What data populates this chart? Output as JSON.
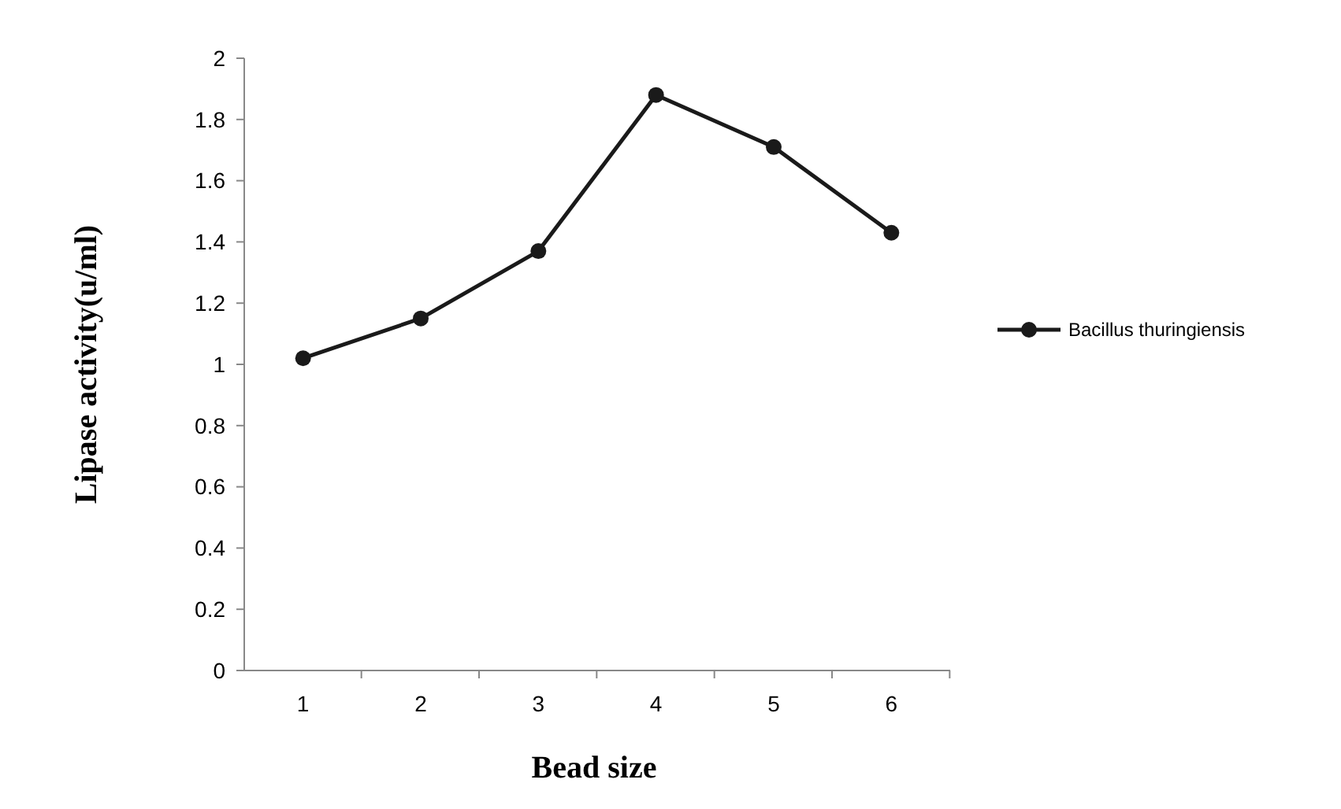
{
  "chart_data": {
    "type": "line",
    "xlabel": "Bead size",
    "ylabel": "Lipase activity(u/ml)",
    "categories": [
      "1",
      "2",
      "3",
      "4",
      "5",
      "6"
    ],
    "series": [
      {
        "name": "Bacillus thuringiensis",
        "color": "#1a1a1a",
        "values": [
          1.02,
          1.15,
          1.37,
          1.88,
          1.71,
          1.43
        ]
      }
    ],
    "ylim": [
      0,
      2
    ],
    "yticks": [
      0,
      {
        "value": 0.2,
        "label": "0.2"
      },
      {
        "value": 0.4,
        "label": "0.4"
      },
      {
        "value": 0.6,
        "label": "0.6"
      },
      {
        "value": 0.8,
        "label": "0.8"
      },
      1,
      {
        "value": 1.2,
        "label": "1.2"
      },
      {
        "value": 1.4,
        "label": "1.4"
      },
      {
        "value": 1.6,
        "label": "1.6"
      },
      {
        "value": 1.8,
        "label": "1.8"
      },
      2
    ],
    "grid": false,
    "legend": "right",
    "marker": "circle",
    "line_style": "solid"
  }
}
